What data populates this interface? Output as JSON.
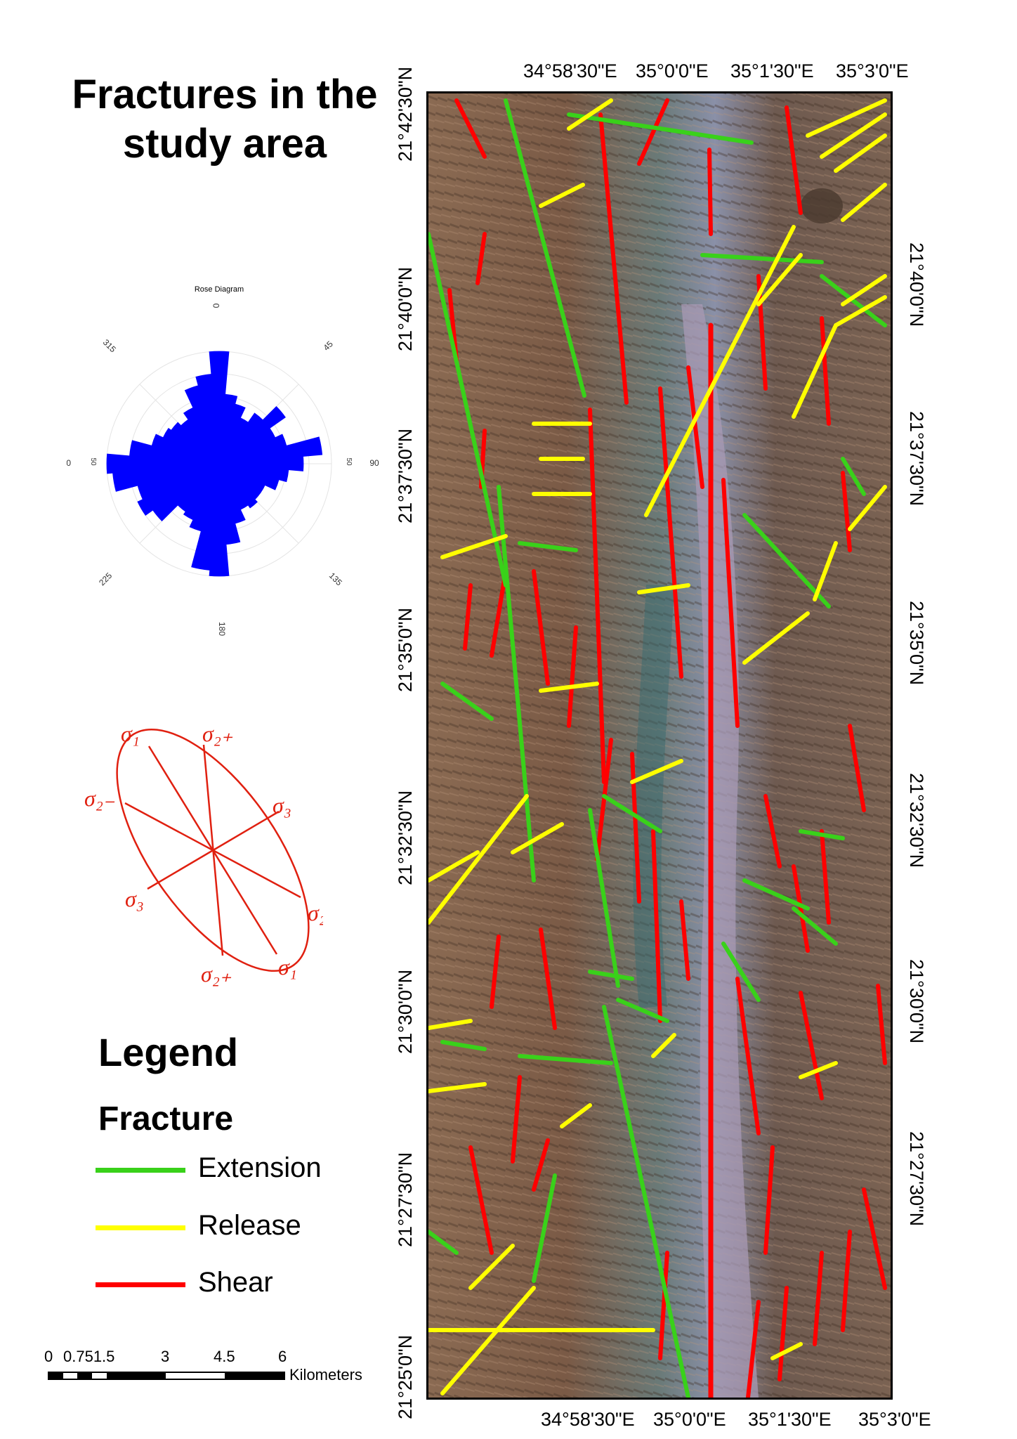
{
  "title_lines": [
    "Fractures in the",
    "study area"
  ],
  "rose": {
    "title": "Rose Diagram",
    "angle_labels": [
      "0",
      "45",
      "90",
      "135",
      "180",
      "225",
      "270",
      "315"
    ],
    "radial_labels": [
      "50",
      "50"
    ],
    "color": "#0000ff",
    "petals": [
      {
        "dir": 0,
        "r": 1.0
      },
      {
        "dir": 10,
        "r": 0.62
      },
      {
        "dir": 20,
        "r": 0.55
      },
      {
        "dir": 30,
        "r": 0.45
      },
      {
        "dir": 40,
        "r": 0.55
      },
      {
        "dir": 50,
        "r": 0.72
      },
      {
        "dir": 60,
        "r": 0.55
      },
      {
        "dir": 70,
        "r": 0.62
      },
      {
        "dir": 80,
        "r": 0.92
      },
      {
        "dir": 90,
        "r": 0.75
      },
      {
        "dir": 100,
        "r": 0.62
      },
      {
        "dir": 110,
        "r": 0.55
      },
      {
        "dir": 120,
        "r": 0.45
      },
      {
        "dir": 130,
        "r": 0.45
      },
      {
        "dir": 140,
        "r": 0.48
      },
      {
        "dir": 150,
        "r": 0.45
      },
      {
        "dir": 160,
        "r": 0.55
      },
      {
        "dir": 170,
        "r": 0.72
      },
      {
        "dir": 180,
        "r": 1.0
      },
      {
        "dir": 190,
        "r": 0.95
      },
      {
        "dir": 200,
        "r": 0.62
      },
      {
        "dir": 210,
        "r": 0.55
      },
      {
        "dir": 220,
        "r": 0.52
      },
      {
        "dir": 230,
        "r": 0.72
      },
      {
        "dir": 240,
        "r": 0.8
      },
      {
        "dir": 250,
        "r": 0.75
      },
      {
        "dir": 260,
        "r": 0.95
      },
      {
        "dir": 270,
        "r": 1.0
      },
      {
        "dir": 280,
        "r": 0.8
      },
      {
        "dir": 290,
        "r": 0.62
      },
      {
        "dir": 300,
        "r": 0.55
      },
      {
        "dir": 310,
        "r": 0.52
      },
      {
        "dir": 320,
        "r": 0.48
      },
      {
        "dir": 330,
        "r": 0.55
      },
      {
        "dir": 340,
        "r": 0.72
      },
      {
        "dir": 350,
        "r": 0.8
      }
    ]
  },
  "ellipse_labels": [
    "σ₁",
    "σ₂₊",
    "σ₂₋",
    "σ₃",
    "σ₃",
    "σ₂₋",
    "σ₂₊",
    "σ₁"
  ],
  "legend": {
    "heading": "Legend",
    "subheading": "Fracture",
    "items": [
      {
        "label": "Extension",
        "color": "#39d11a"
      },
      {
        "label": "Release",
        "color": "#ffff00"
      },
      {
        "label": "Shear",
        "color": "#ff0000"
      }
    ]
  },
  "scale_bar": {
    "ticks": [
      "0",
      "0.751.5",
      "3",
      "4.5",
      "6"
    ],
    "unit": "Kilometers"
  },
  "coords": {
    "top": [
      "34°58'30\"E",
      "35°0'0\"E",
      "35°1'30\"E",
      "35°3'0\"E"
    ],
    "bottom": [
      "34°58'30\"E",
      "35°0'0\"E",
      "35°1'30\"E",
      "35°3'0\"E"
    ],
    "left": [
      "21°42'30\"N",
      "21°40'0\"N",
      "21°37'30\"N",
      "21°35'0\"N",
      "21°32'30\"N",
      "21°30'0\"N",
      "21°27'30\"N",
      "21°25'0\"N"
    ],
    "right": [
      "21°40'0\"N",
      "21°37'30\"N",
      "21°35'0\"N",
      "21°32'30\"N",
      "21°30'0\"N",
      "21°27'30\"N"
    ]
  }
}
